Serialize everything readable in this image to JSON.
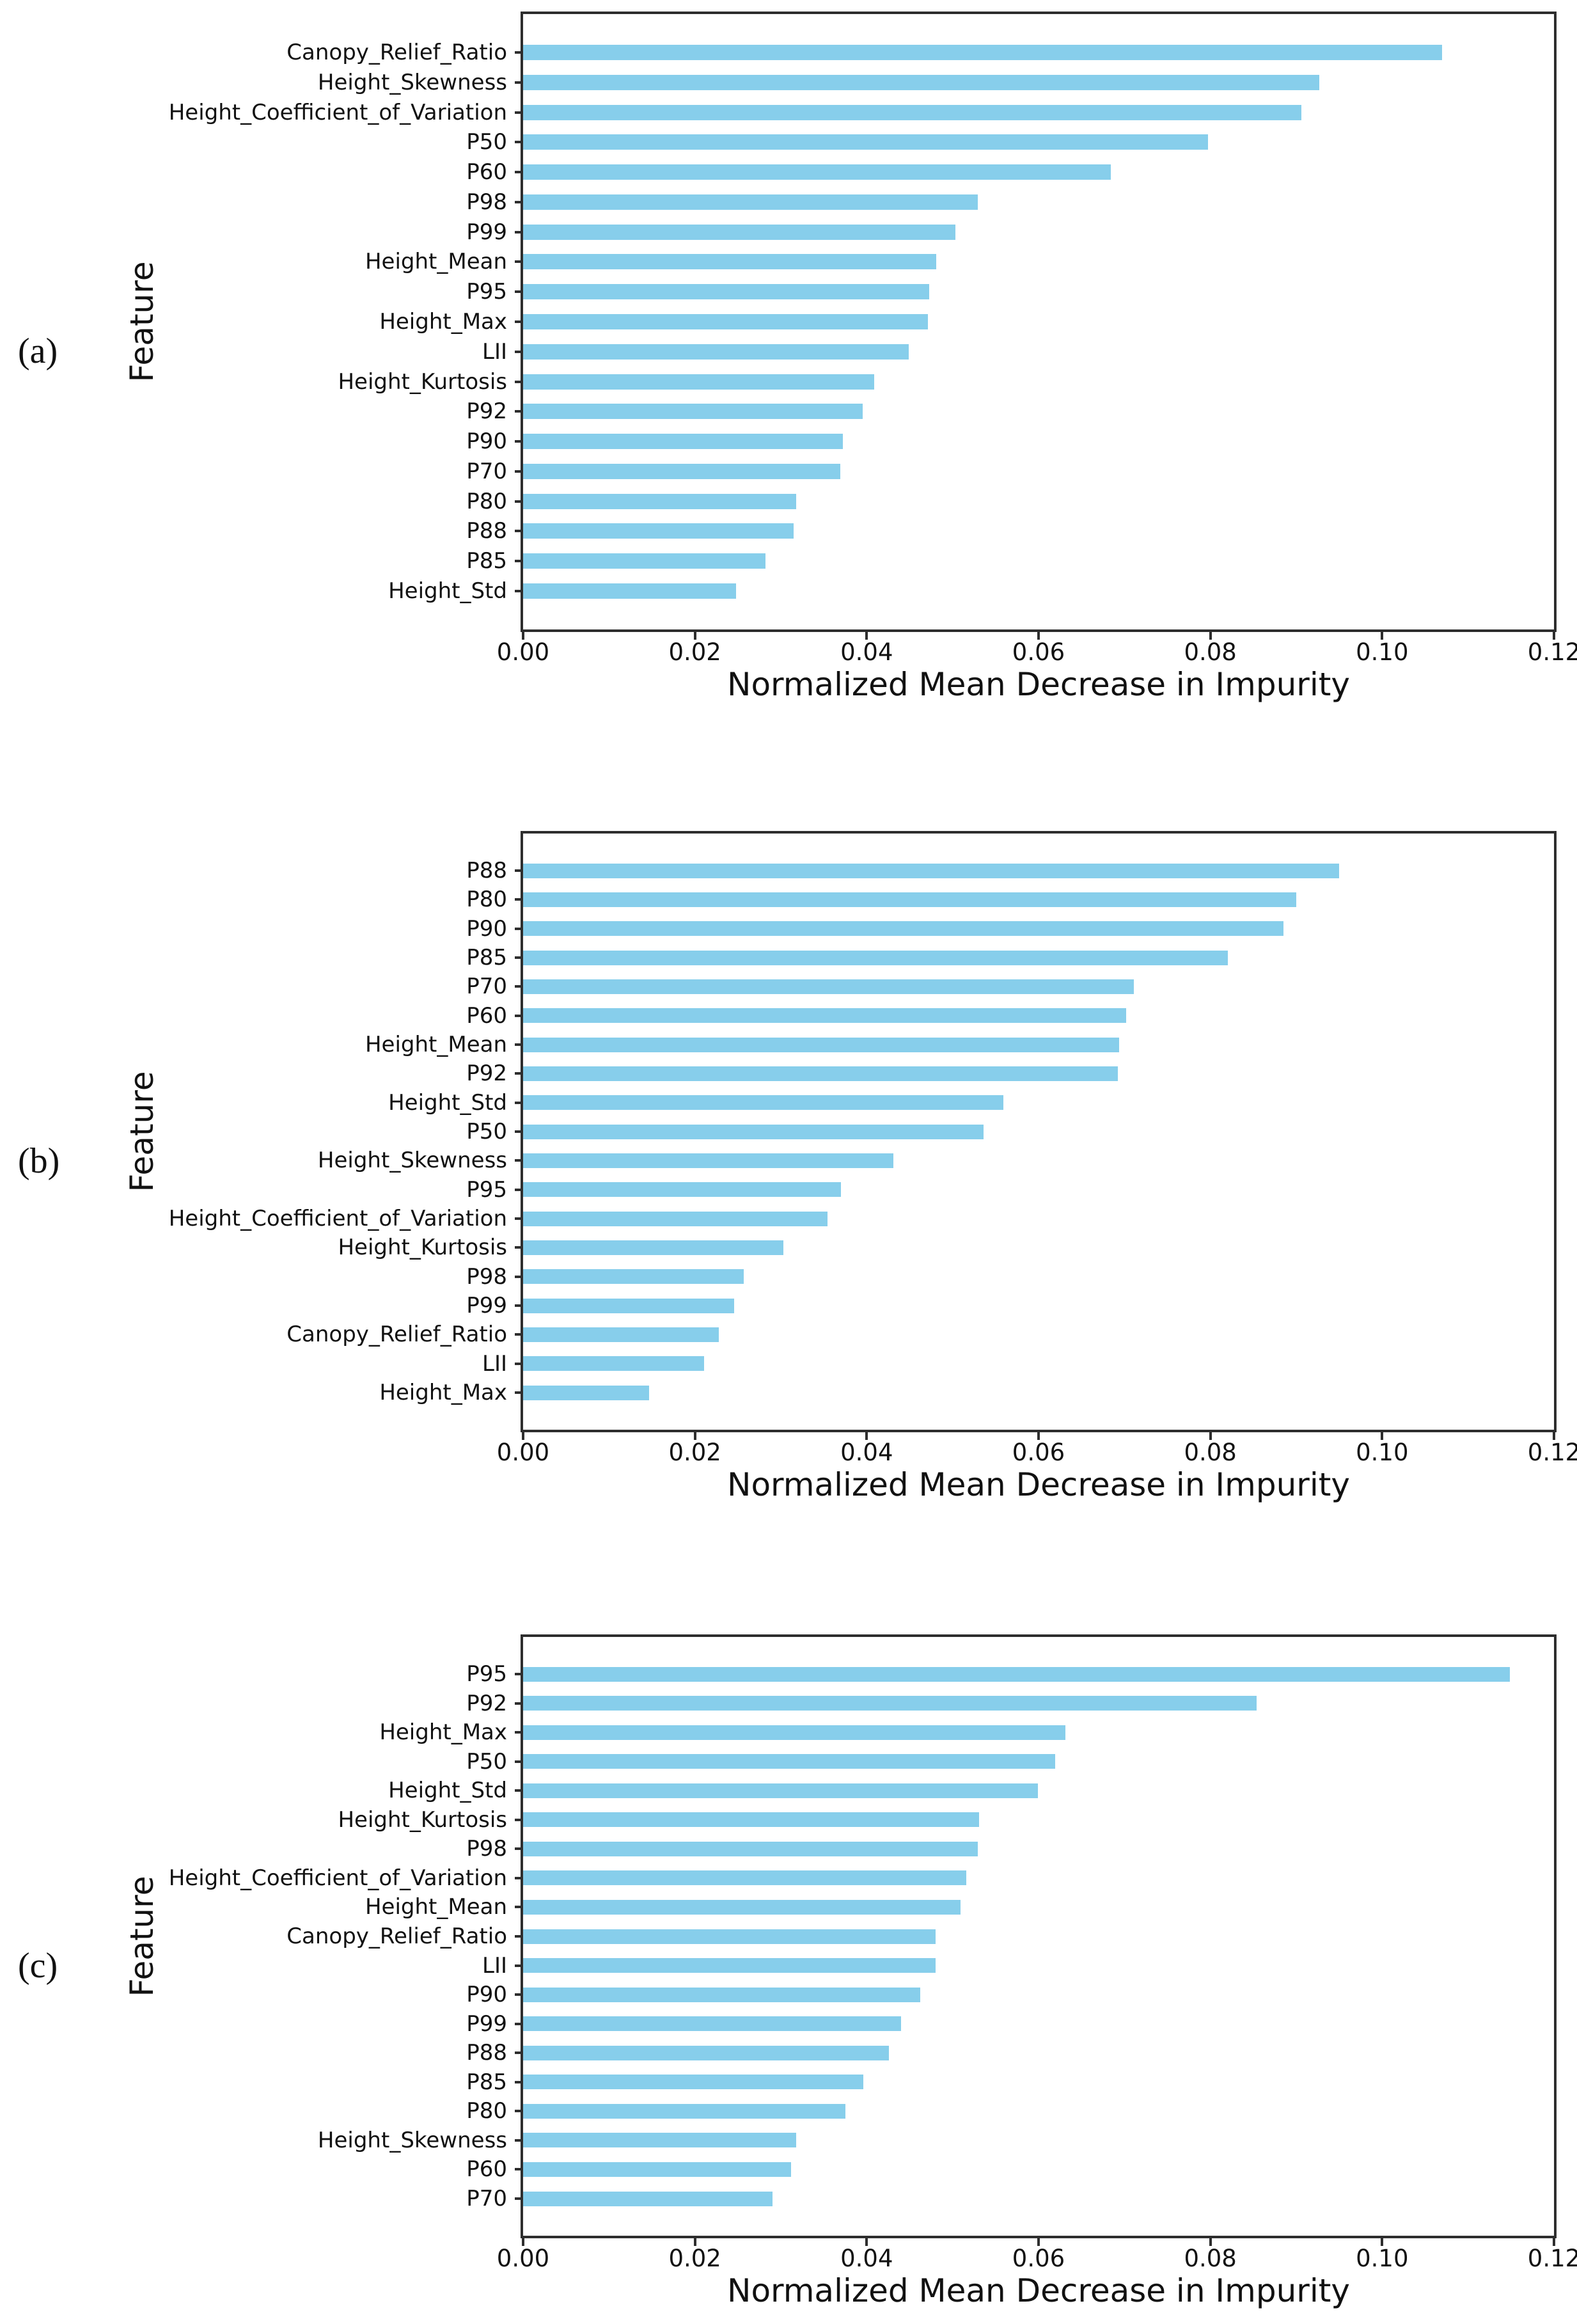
{
  "figure_caption_tags": [
    "(a)",
    "(b)",
    "(c)"
  ],
  "colors": {
    "bar_fill": "#87CEEB",
    "axis_spine": "#2e2e2e",
    "text": "#111111",
    "background": "#ffffff"
  },
  "chart_data": [
    {
      "tag": "(a)",
      "type": "bar",
      "orientation": "horizontal",
      "xlabel": "Normalized Mean Decrease in Impurity",
      "ylabel": "Feature",
      "xlim": [
        0,
        0.12
      ],
      "x_tick_labels": [
        "0.00",
        "0.02",
        "0.04",
        "0.06",
        "0.08",
        "0.10",
        "0.12"
      ],
      "grid": false,
      "categories": [
        "Canopy_Relief_Ratio",
        "Height_Skewness",
        "Height_Coefficient_of_Variation",
        "P50",
        "P60",
        "P98",
        "P99",
        "Height_Mean",
        "P95",
        "Height_Max",
        "LII",
        "Height_Kurtosis",
        "P92",
        "P90",
        "P70",
        "P80",
        "P88",
        "P85",
        "Height_Std"
      ],
      "values": [
        0.107,
        0.0927,
        0.0906,
        0.0797,
        0.0684,
        0.0529,
        0.0503,
        0.0481,
        0.0473,
        0.0471,
        0.0449,
        0.0409,
        0.0395,
        0.0372,
        0.0369,
        0.0318,
        0.0315,
        0.0282,
        0.0248
      ]
    },
    {
      "tag": "(b)",
      "type": "bar",
      "orientation": "horizontal",
      "xlabel": "Normalized Mean Decrease in Impurity",
      "ylabel": "Feature",
      "xlim": [
        0,
        0.12
      ],
      "x_tick_labels": [
        "0.00",
        "0.02",
        "0.04",
        "0.06",
        "0.08",
        "0.10",
        "0.12"
      ],
      "grid": false,
      "categories": [
        "P88",
        "P80",
        "P90",
        "P85",
        "P70",
        "P60",
        "Height_Mean",
        "P92",
        "Height_Std",
        "P50",
        "Height_Skewness",
        "P95",
        "Height_Coefficient_of_Variation",
        "Height_Kurtosis",
        "P98",
        "P99",
        "Canopy_Relief_Ratio",
        "LII",
        "Height_Max"
      ],
      "values": [
        0.095,
        0.09,
        0.0885,
        0.082,
        0.0711,
        0.0702,
        0.0694,
        0.0692,
        0.0559,
        0.0536,
        0.0431,
        0.037,
        0.0354,
        0.0303,
        0.0257,
        0.0246,
        0.0228,
        0.0211,
        0.0147
      ]
    },
    {
      "tag": "(c)",
      "type": "bar",
      "orientation": "horizontal",
      "xlabel": "Normalized Mean Decrease in Impurity",
      "ylabel": "Feature",
      "xlim": [
        0,
        0.12
      ],
      "x_tick_labels": [
        "0.00",
        "0.02",
        "0.04",
        "0.06",
        "0.08",
        "0.10",
        "0.12"
      ],
      "grid": false,
      "categories": [
        "P95",
        "P92",
        "Height_Max",
        "P50",
        "Height_Std",
        "Height_Kurtosis",
        "P98",
        "Height_Coefficient_of_Variation",
        "Height_Mean",
        "Canopy_Relief_Ratio",
        "LII",
        "P90",
        "P99",
        "P88",
        "P85",
        "P80",
        "Height_Skewness",
        "P60",
        "P70"
      ],
      "values": [
        0.1149,
        0.0854,
        0.0631,
        0.0619,
        0.0599,
        0.0531,
        0.0529,
        0.0516,
        0.0509,
        0.048,
        0.048,
        0.0462,
        0.044,
        0.0426,
        0.0396,
        0.0375,
        0.0318,
        0.0312,
        0.029
      ]
    }
  ]
}
